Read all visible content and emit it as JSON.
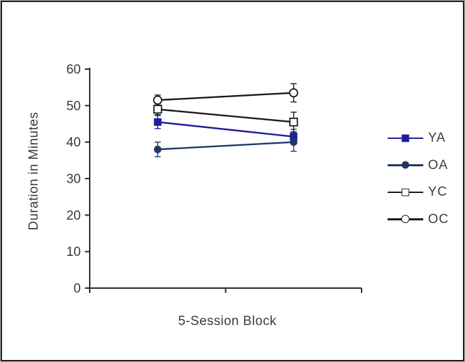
{
  "figure": {
    "background": "#ffffff",
    "frame_border_color": "#1c1c1c",
    "axis_color": "#2b2b2b",
    "text_color": "#3a3a3a"
  },
  "chart_data": {
    "type": "line",
    "title": "",
    "xlabel": "5-Session Block",
    "ylabel": "Duration in Minutes",
    "ylim": [
      0,
      60
    ],
    "y_ticks": [
      0,
      10,
      20,
      30,
      40,
      50,
      60
    ],
    "x_tick_labels": [],
    "n_x_points": 2,
    "grid": false,
    "error_bars": true,
    "legend_position": "right-middle",
    "series": [
      {
        "name": "YA",
        "marker": "square-filled",
        "color": "#1d1d9c",
        "values": [
          45.5,
          41.5
        ],
        "errors": [
          1.8,
          2.0
        ]
      },
      {
        "name": "OA",
        "marker": "circle-filled",
        "color": "#1f3864",
        "values": [
          38.0,
          40.0
        ],
        "errors": [
          2.0,
          2.5
        ]
      },
      {
        "name": "YC",
        "marker": "square-open",
        "color": "#1a1a1a",
        "values": [
          49.0,
          45.5
        ],
        "errors": [
          1.5,
          2.7
        ]
      },
      {
        "name": "OC",
        "marker": "circle-open",
        "color": "#1a1a1a",
        "values": [
          51.5,
          53.5
        ],
        "errors": [
          1.4,
          2.5
        ]
      }
    ]
  }
}
